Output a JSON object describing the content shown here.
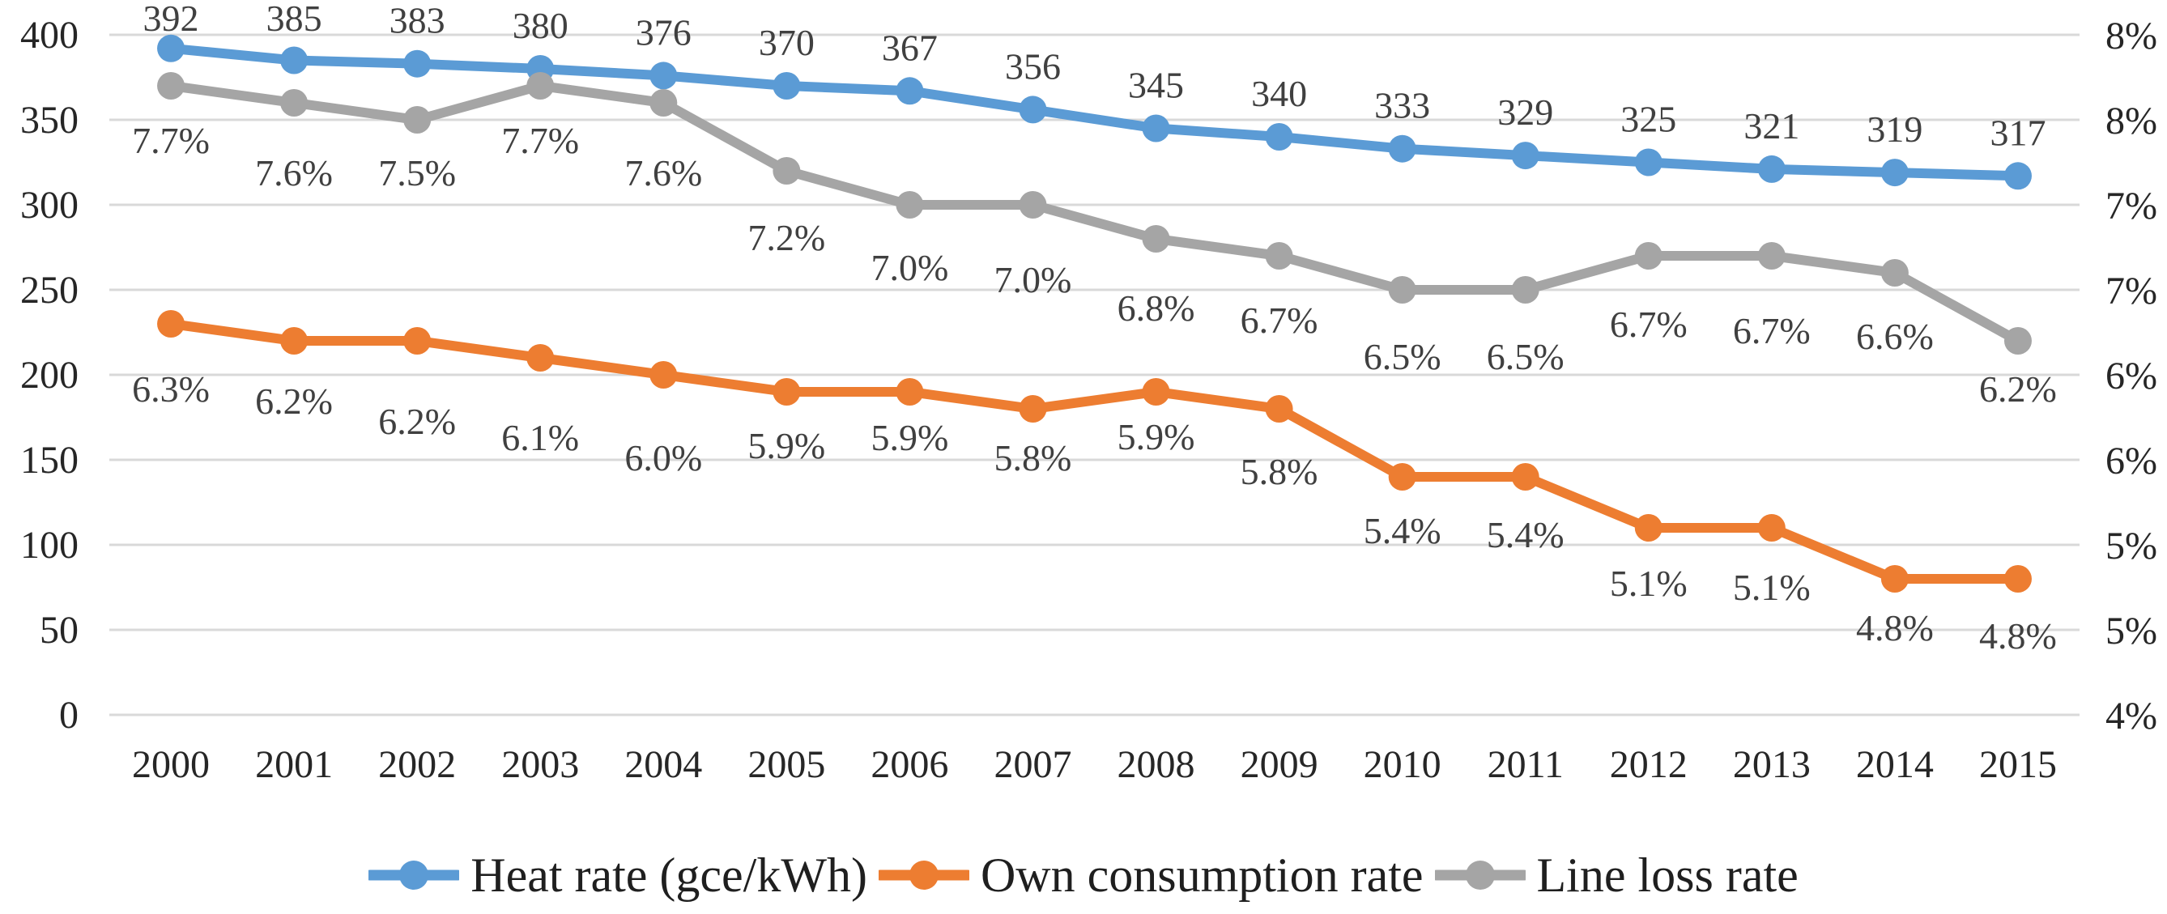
{
  "chart_data": {
    "type": "line",
    "title": "",
    "categories": [
      "2000",
      "2001",
      "2002",
      "2003",
      "2004",
      "2005",
      "2006",
      "2007",
      "2008",
      "2009",
      "2010",
      "2011",
      "2012",
      "2013",
      "2014",
      "2015"
    ],
    "series": [
      {
        "name": "Heat rate (gce/kWh)",
        "axis": "left",
        "color": "#5B9BD5",
        "values": [
          392,
          385,
          383,
          380,
          376,
          370,
          367,
          356,
          345,
          340,
          333,
          329,
          325,
          321,
          319,
          317
        ],
        "data_labels": [
          "392",
          "385",
          "383",
          "380",
          "376",
          "370",
          "367",
          "356",
          "345",
          "340",
          "333",
          "329",
          "325",
          "321",
          "319",
          "317"
        ]
      },
      {
        "name": "Own consumption rate",
        "axis": "right",
        "color": "#ED7D31",
        "values": [
          6.3,
          6.2,
          6.2,
          6.1,
          6.0,
          5.9,
          5.9,
          5.8,
          5.9,
          5.8,
          5.4,
          5.4,
          5.1,
          5.1,
          4.8,
          4.8
        ],
        "data_labels": [
          "6.3%",
          "6.2%",
          "6.2%",
          "6.1%",
          "6.0%",
          "5.9%",
          "5.9%",
          "5.8%",
          "5.9%",
          "5.8%",
          "5.4%",
          "5.4%",
          "5.1%",
          "5.1%",
          "4.8%",
          "4.8%"
        ]
      },
      {
        "name": "Line loss rate",
        "axis": "right",
        "color": "#A5A5A5",
        "values": [
          7.7,
          7.6,
          7.5,
          7.7,
          7.6,
          7.2,
          7.0,
          7.0,
          6.8,
          6.7,
          6.5,
          6.5,
          6.7,
          6.7,
          6.6,
          6.2
        ],
        "data_labels": [
          "7.7%",
          "7.6%",
          "7.5%",
          "7.7%",
          "7.6%",
          "7.2%",
          "7.0%",
          "7.0%",
          "6.8%",
          "6.7%",
          "6.5%",
          "6.5%",
          "6.7%",
          "6.7%",
          "6.6%",
          "6.2%"
        ]
      }
    ],
    "y_left": {
      "min": 0,
      "max": 400,
      "step": 50,
      "tick_labels": [
        "0",
        "50",
        "100",
        "150",
        "200",
        "250",
        "300",
        "350",
        "400"
      ]
    },
    "y_right": {
      "min": 4,
      "max": 8,
      "step": 0.5,
      "tick_labels": [
        "4%",
        "5%",
        "5%",
        "6%",
        "6%",
        "7%",
        "7%",
        "8%",
        "8%"
      ]
    },
    "grid": true,
    "legend_position": "bottom",
    "colors": {
      "gridline": "#D9D9D9",
      "axis_text": "#262626",
      "data_label_text": "#404040",
      "background": "#FFFFFF"
    }
  },
  "legend": {
    "items": [
      {
        "label": "Heat rate (gce/kWh)",
        "color": "#5B9BD5"
      },
      {
        "label": "Own consumption rate",
        "color": "#ED7D31"
      },
      {
        "label": "Line loss rate",
        "color": "#A5A5A5"
      }
    ]
  }
}
